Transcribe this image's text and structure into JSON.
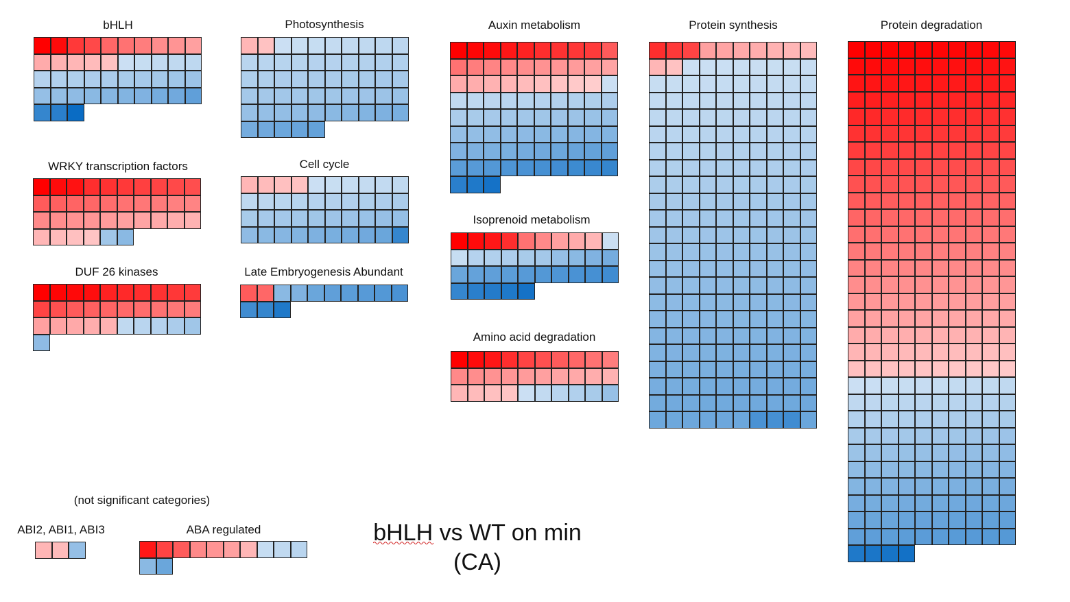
{
  "colors": {
    "red_max": "#ff0000",
    "white_mid": "#e6eef8",
    "blue_max": "#0a6cc4"
  },
  "panels": [
    {
      "key": "bhlh",
      "title": "bHLH",
      "values": [
        1,
        0.95,
        0.75,
        0.68,
        0.55,
        0.5,
        0.45,
        0.38,
        0.35,
        0.3,
        0.25,
        0.22,
        0.2,
        0.18,
        0.15,
        -0.1,
        -0.12,
        -0.14,
        -0.15,
        -0.16,
        -0.2,
        -0.22,
        -0.23,
        -0.24,
        -0.25,
        -0.26,
        -0.27,
        -0.28,
        -0.3,
        -0.32,
        -0.35,
        -0.36,
        -0.38,
        -0.4,
        -0.42,
        -0.44,
        -0.45,
        -0.5,
        -0.52,
        -0.6,
        -0.8,
        -0.85,
        -1
      ]
    },
    {
      "key": "wrky",
      "title": "WRKY transcription factors",
      "values": [
        1,
        0.95,
        0.92,
        0.8,
        0.78,
        0.75,
        0.72,
        0.7,
        0.68,
        0.66,
        0.6,
        0.58,
        0.56,
        0.55,
        0.52,
        0.5,
        0.48,
        0.46,
        0.44,
        0.42,
        0.4,
        0.38,
        0.36,
        0.34,
        0.32,
        0.3,
        0.28,
        0.26,
        0.24,
        0.22,
        0.2,
        0.18,
        0.16,
        0.14,
        -0.3,
        -0.4
      ]
    },
    {
      "key": "duf26",
      "title": "DUF 26 kinases",
      "values": [
        1,
        0.98,
        0.96,
        0.94,
        0.85,
        0.82,
        0.8,
        0.78,
        0.76,
        0.74,
        0.7,
        0.65,
        0.6,
        0.58,
        0.56,
        0.54,
        0.52,
        0.5,
        0.48,
        0.46,
        0.3,
        0.28,
        0.26,
        0.24,
        0.22,
        -0.15,
        -0.18,
        -0.2,
        -0.25,
        -0.3,
        -0.38
      ]
    },
    {
      "key": "photo",
      "title": "Photosynthesis",
      "values": [
        0.2,
        0.15,
        -0.1,
        -0.11,
        -0.12,
        -0.13,
        -0.14,
        -0.15,
        -0.16,
        -0.17,
        -0.18,
        -0.18,
        -0.19,
        -0.19,
        -0.2,
        -0.2,
        -0.21,
        -0.21,
        -0.22,
        -0.22,
        -0.23,
        -0.23,
        -0.24,
        -0.24,
        -0.25,
        -0.25,
        -0.26,
        -0.26,
        -0.27,
        -0.27,
        -0.28,
        -0.28,
        -0.29,
        -0.29,
        -0.3,
        -0.3,
        -0.31,
        -0.31,
        -0.32,
        -0.33,
        -0.34,
        -0.35,
        -0.36,
        -0.37,
        -0.38,
        -0.4,
        -0.42,
        -0.44,
        -0.46,
        -0.48,
        -0.5,
        -0.52,
        -0.54,
        -0.56,
        -0.58
      ]
    },
    {
      "key": "cellcycle",
      "title": "Cell cycle",
      "values": [
        0.2,
        0.18,
        0.16,
        0.15,
        -0.1,
        -0.11,
        -0.12,
        -0.13,
        -0.14,
        -0.15,
        -0.16,
        -0.17,
        -0.18,
        -0.19,
        -0.2,
        -0.21,
        -0.22,
        -0.23,
        -0.24,
        -0.25,
        -0.26,
        -0.27,
        -0.28,
        -0.29,
        -0.3,
        -0.31,
        -0.32,
        -0.33,
        -0.34,
        -0.35,
        -0.38,
        -0.4,
        -0.42,
        -0.44,
        -0.46,
        -0.48,
        -0.5,
        -0.52,
        -0.55,
        -0.8
      ]
    },
    {
      "key": "lea",
      "title": "Late Embryogenesis Abundant",
      "values": [
        0.6,
        0.55,
        -0.4,
        -0.45,
        -0.55,
        -0.6,
        -0.62,
        -0.64,
        -0.66,
        -0.7,
        -0.75,
        -0.8,
        -0.9
      ]
    },
    {
      "key": "auxin",
      "title": "Auxin metabolism",
      "values": [
        1,
        0.98,
        0.95,
        0.9,
        0.85,
        0.8,
        0.78,
        0.76,
        0.74,
        0.6,
        0.5,
        0.45,
        0.42,
        0.4,
        0.38,
        0.36,
        0.34,
        0.32,
        0.3,
        0.28,
        0.25,
        0.24,
        0.22,
        0.2,
        0.18,
        0.16,
        0.14,
        0.12,
        0.1,
        -0.1,
        -0.15,
        -0.16,
        -0.17,
        -0.18,
        -0.19,
        -0.2,
        -0.21,
        -0.22,
        -0.23,
        -0.24,
        -0.25,
        -0.26,
        -0.27,
        -0.28,
        -0.29,
        -0.3,
        -0.31,
        -0.32,
        -0.33,
        -0.34,
        -0.35,
        -0.36,
        -0.37,
        -0.38,
        -0.39,
        -0.4,
        -0.41,
        -0.42,
        -0.43,
        -0.44,
        -0.45,
        -0.46,
        -0.47,
        -0.48,
        -0.5,
        -0.52,
        -0.54,
        -0.56,
        -0.58,
        -0.6,
        -0.62,
        -0.64,
        -0.66,
        -0.68,
        -0.7,
        -0.72,
        -0.74,
        -0.76,
        -0.78,
        -0.8,
        -0.85,
        -0.9,
        -0.95
      ]
    },
    {
      "key": "isoprenoid",
      "title": "Isoprenoid metabolism",
      "values": [
        1,
        0.95,
        0.9,
        0.8,
        0.5,
        0.4,
        0.3,
        0.25,
        0.2,
        -0.1,
        -0.12,
        -0.2,
        -0.22,
        -0.24,
        -0.26,
        -0.28,
        -0.35,
        -0.4,
        -0.45,
        -0.5,
        -0.55,
        -0.58,
        -0.6,
        -0.62,
        -0.64,
        -0.66,
        -0.68,
        -0.7,
        -0.72,
        -0.75,
        -0.8,
        -0.85,
        -0.88,
        -0.9,
        -0.95
      ]
    },
    {
      "key": "aminoacid",
      "title": "Amino acid degradation",
      "values": [
        1,
        0.95,
        0.9,
        0.8,
        0.7,
        0.65,
        0.6,
        0.55,
        0.5,
        0.45,
        0.4,
        0.38,
        0.36,
        0.34,
        0.32,
        0.3,
        0.28,
        0.26,
        0.24,
        0.22,
        0.2,
        0.18,
        0.16,
        0.14,
        -0.1,
        -0.14,
        -0.18,
        -0.22,
        -0.26,
        -0.34
      ]
    },
    {
      "key": "protsynth",
      "title": "Protein synthesis"
    },
    {
      "key": "protdeg",
      "title": "Protein degradation"
    },
    {
      "key": "abi",
      "title": "ABI2, ABI1, ABI3",
      "values": [
        0.2,
        0.18,
        -0.35
      ]
    },
    {
      "key": "aba",
      "title": "ABA regulated",
      "values": [
        0.9,
        0.7,
        0.6,
        0.4,
        0.35,
        0.3,
        0.2,
        -0.12,
        -0.15,
        -0.18,
        -0.4,
        -0.55
      ]
    }
  ],
  "note": "(not significant categories)",
  "main_title": {
    "line1": "bHLH vs WT on min",
    "line2": "(CA)"
  }
}
